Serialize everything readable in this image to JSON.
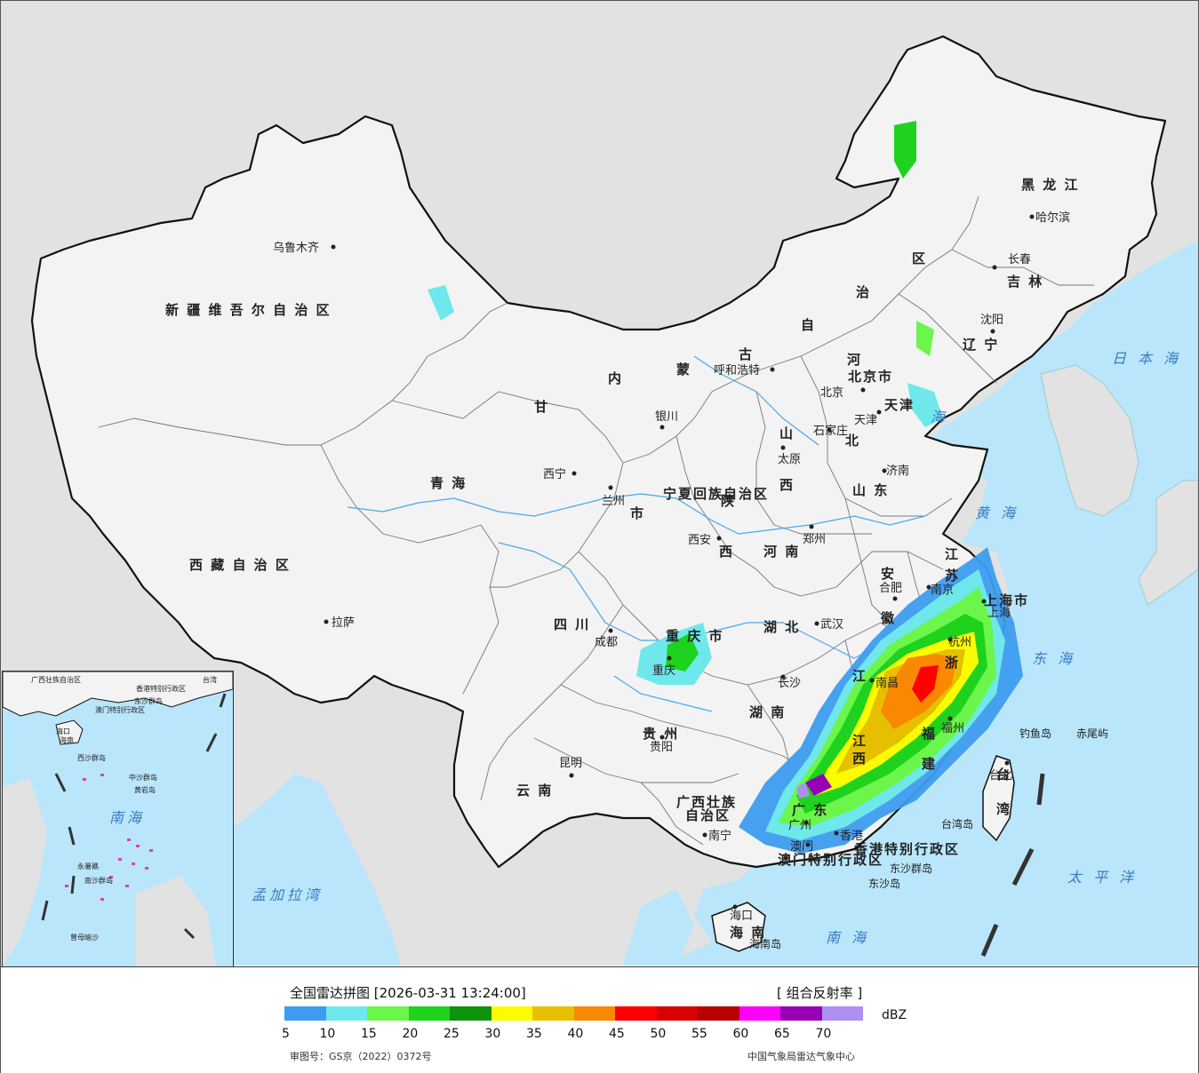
{
  "colors": {
    "ocean": "#b9e6fb",
    "land": "#f3f3f3",
    "neighbor": "#e2e2e2",
    "border": "#111111",
    "river": "#4aa8e6"
  },
  "legend": {
    "title": "全国雷达拼图 [2026-03-31 13:24:00]",
    "product": "[ 组合反射率 ]",
    "unit": "dBZ",
    "colors": [
      "#3d9cf0",
      "#6ee8ea",
      "#6cf54a",
      "#1ed21e",
      "#0e930e",
      "#fcfc00",
      "#e6c000",
      "#fa8800",
      "#fe0000",
      "#d80000",
      "#b80000",
      "#fb00fb",
      "#9600b4",
      "#ad90f0"
    ],
    "ticks": [
      "5",
      "10",
      "15",
      "20",
      "25",
      "30",
      "35",
      "40",
      "45",
      "50",
      "55",
      "60",
      "65",
      "70"
    ],
    "approval": "审图号：GS京（2022）0372号",
    "agency": "中国气象局雷达气象中心"
  },
  "provinces": [
    {
      "name": "新 疆 维 吾 尔 自 治 区"
    },
    {
      "name": "西 藏 自 治 区"
    },
    {
      "name": "青    海"
    },
    {
      "name": "甘"
    },
    {
      "name": "内"
    },
    {
      "name": "蒙"
    },
    {
      "name": "古"
    },
    {
      "name": "自"
    },
    {
      "name": "治"
    },
    {
      "name": "区"
    },
    {
      "name": "黑  龙  江"
    },
    {
      "name": "吉  林"
    },
    {
      "name": "辽  宁"
    },
    {
      "name": "河"
    },
    {
      "name": "北"
    },
    {
      "name": "山"
    },
    {
      "name": "西"
    },
    {
      "name": "山  东"
    },
    {
      "name": "陕"
    },
    {
      "name": "西"
    },
    {
      "name": "河  南"
    },
    {
      "name": "四    川"
    },
    {
      "name": "湖  北"
    },
    {
      "name": "安"
    },
    {
      "name": "徽"
    },
    {
      "name": "江"
    },
    {
      "name": "苏"
    },
    {
      "name": "浙"
    },
    {
      "name": "江"
    },
    {
      "name": "湖  南"
    },
    {
      "name": "江"
    },
    {
      "name": "西"
    },
    {
      "name": "福"
    },
    {
      "name": "建"
    },
    {
      "name": "贵  州"
    },
    {
      "name": "云    南"
    },
    {
      "name": "广西壮族"
    },
    {
      "name": "自治区"
    },
    {
      "name": "广  东"
    },
    {
      "name": "海  南"
    },
    {
      "name": "台"
    },
    {
      "name": "湾"
    },
    {
      "name": "宁夏回族自治区"
    },
    {
      "name": "市"
    },
    {
      "name": "重  庆  市"
    },
    {
      "name": "上海市"
    },
    {
      "name": "北京市"
    },
    {
      "name": "天津"
    }
  ],
  "cities": [
    {
      "name": "乌鲁木齐"
    },
    {
      "name": "拉萨"
    },
    {
      "name": "西宁"
    },
    {
      "name": "兰州"
    },
    {
      "name": "银川"
    },
    {
      "name": "呼和浩特"
    },
    {
      "name": "北京"
    },
    {
      "name": "天津"
    },
    {
      "name": "石家庄"
    },
    {
      "name": "太原"
    },
    {
      "name": "济南"
    },
    {
      "name": "西安"
    },
    {
      "name": "郑州"
    },
    {
      "name": "合肥"
    },
    {
      "name": "南京"
    },
    {
      "name": "上海"
    },
    {
      "name": "杭州"
    },
    {
      "name": "武汉"
    },
    {
      "name": "成都"
    },
    {
      "name": "重庆"
    },
    {
      "name": "长沙"
    },
    {
      "name": "南昌"
    },
    {
      "name": "福州"
    },
    {
      "name": "贵阳"
    },
    {
      "name": "昆明"
    },
    {
      "name": "南宁"
    },
    {
      "name": "广州"
    },
    {
      "name": "香港"
    },
    {
      "name": "澳门"
    },
    {
      "name": "海口"
    },
    {
      "name": "台北"
    },
    {
      "name": "哈尔滨"
    },
    {
      "name": "长春"
    },
    {
      "name": "沈阳"
    }
  ],
  "islands": [
    {
      "name": "钓鱼岛"
    },
    {
      "name": "赤尾屿"
    },
    {
      "name": "台湾岛"
    },
    {
      "name": "东沙群岛"
    },
    {
      "name": "东沙岛"
    },
    {
      "name": "海南岛"
    }
  ],
  "regions": [
    {
      "name": "香港特别行政区"
    },
    {
      "name": "澳门特别行政区"
    }
  ],
  "seas": [
    {
      "name": "日 本 海"
    },
    {
      "name": "黄  海"
    },
    {
      "name": "东  海"
    },
    {
      "name": "太  平  洋"
    },
    {
      "name": "南    海"
    },
    {
      "name": "孟加拉湾"
    },
    {
      "name": "海"
    }
  ],
  "inset": {
    "labels": [
      "广西壮族自治区",
      "海口",
      "海南",
      "香港特别行政区",
      "澳门特别行政区",
      "东沙群岛",
      "台湾",
      "中沙群岛",
      "黄岩岛",
      "南海",
      "南沙群岛",
      "永暑礁",
      "曾母暗沙",
      "西沙群岛"
    ]
  }
}
